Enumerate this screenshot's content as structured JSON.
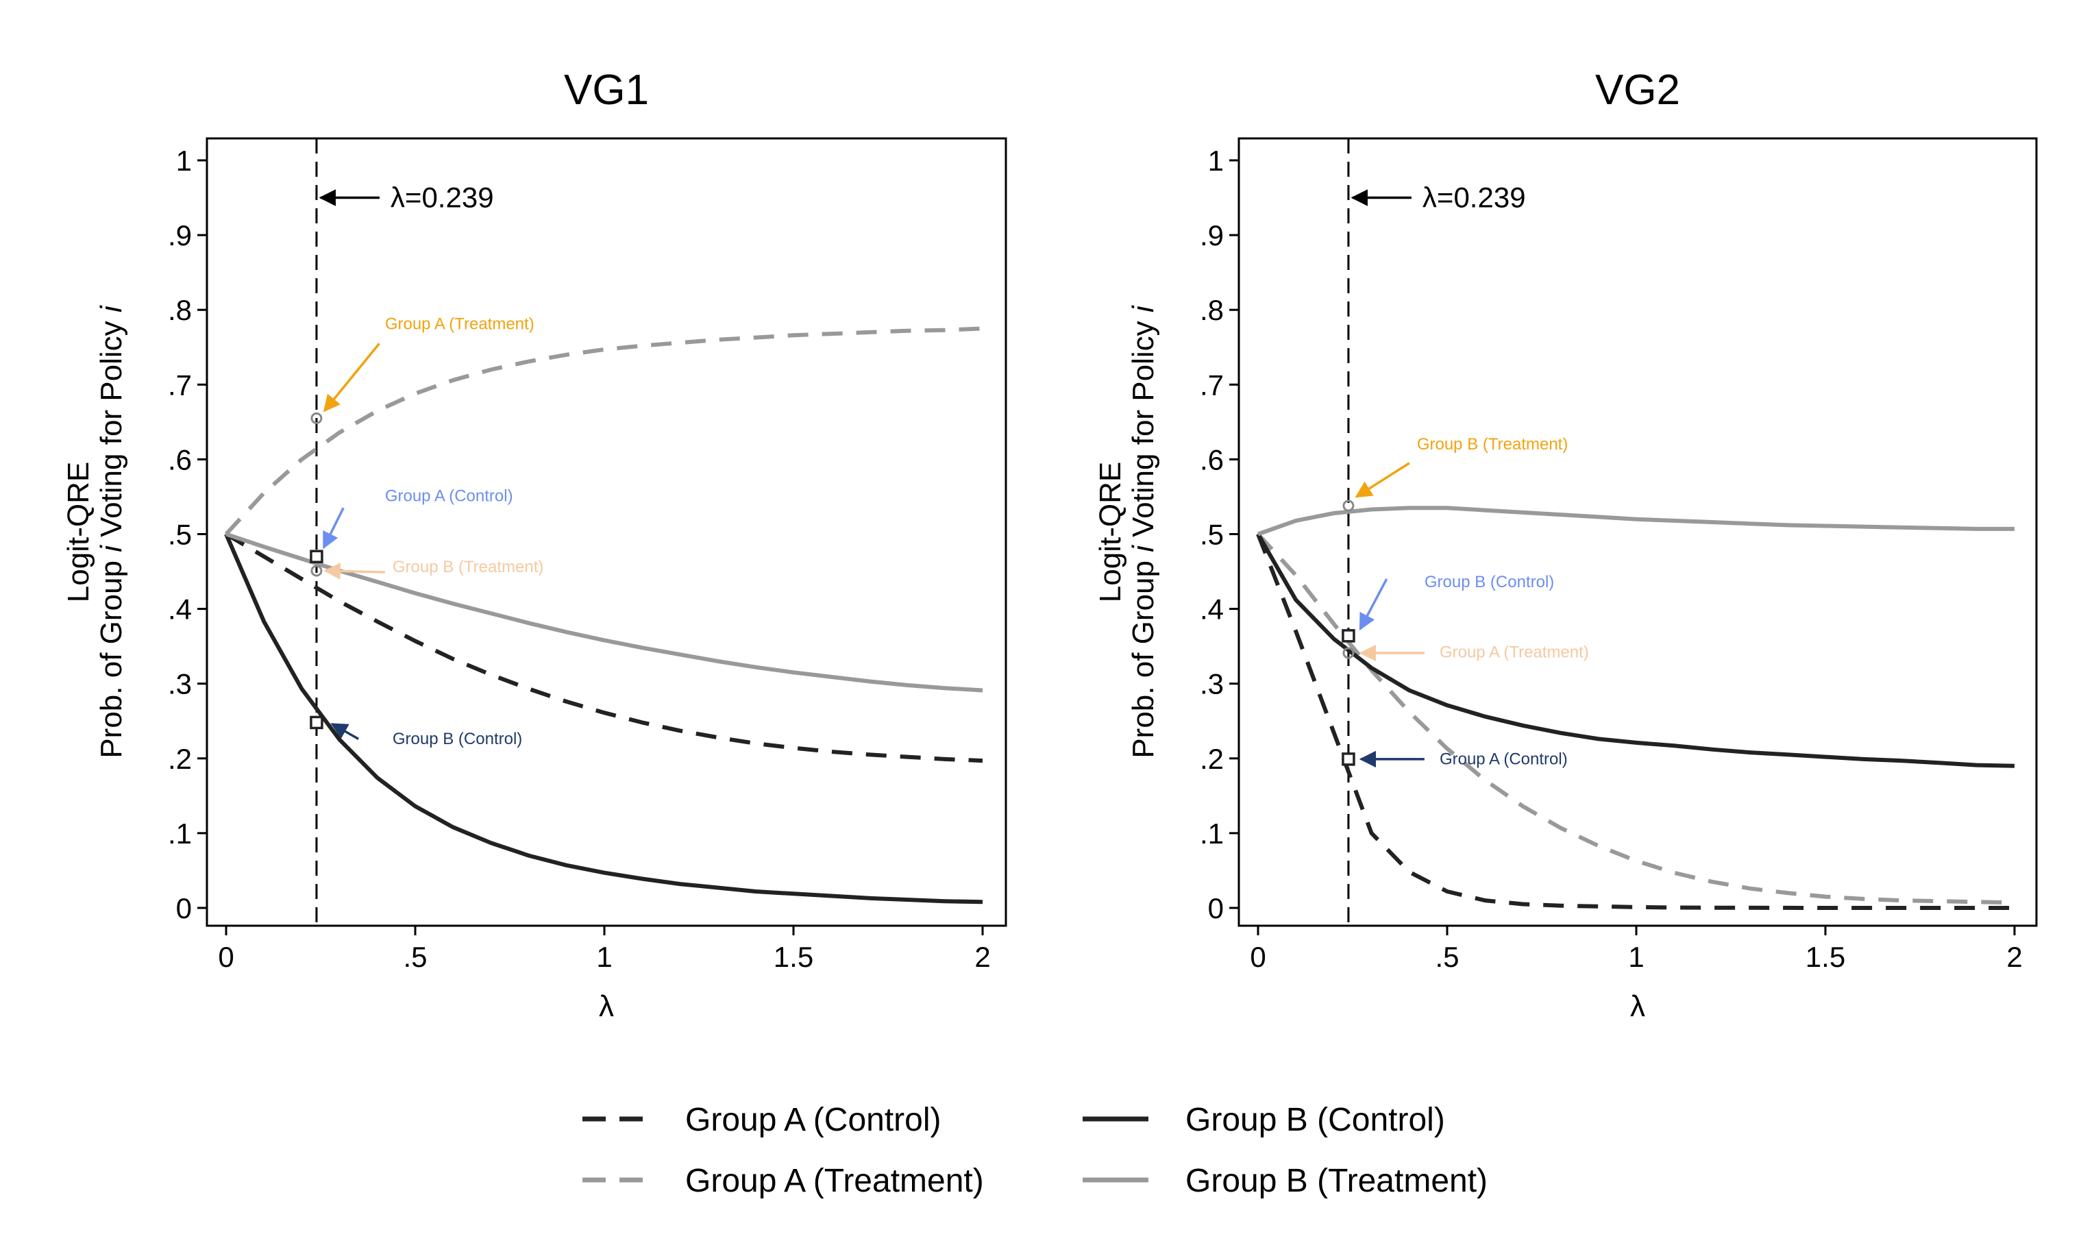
{
  "chart_data": [
    {
      "type": "line",
      "title": "VG1",
      "xlabel": "λ",
      "ylabel": [
        "Logit-QRE",
        "Prob. of Group ",
        "i",
        " Voting for Policy ",
        "i"
      ],
      "xlim": [
        0,
        2
      ],
      "ylim": [
        0,
        1
      ],
      "xticks": [
        {
          "v": 0,
          "label": "0"
        },
        {
          "v": 0.5,
          "label": ".5"
        },
        {
          "v": 1,
          "label": "1"
        },
        {
          "v": 1.5,
          "label": "1.5"
        },
        {
          "v": 2,
          "label": "2"
        }
      ],
      "yticks": [
        {
          "v": 0,
          "label": "0"
        },
        {
          "v": 0.1,
          "label": ".1"
        },
        {
          "v": 0.2,
          "label": ".2"
        },
        {
          "v": 0.3,
          "label": ".3"
        },
        {
          "v": 0.4,
          "label": ".4"
        },
        {
          "v": 0.5,
          "label": ".5"
        },
        {
          "v": 0.6,
          "label": ".6"
        },
        {
          "v": 0.7,
          "label": ".7"
        },
        {
          "v": 0.8,
          "label": ".8"
        },
        {
          "v": 0.9,
          "label": ".9"
        },
        {
          "v": 1,
          "label": "1"
        }
      ],
      "grid": false,
      "vline": {
        "x": 0.239,
        "label": "λ=0.239",
        "y": 0.95
      },
      "x": [
        0,
        0.1,
        0.2,
        0.3,
        0.4,
        0.5,
        0.6,
        0.7,
        0.8,
        0.9,
        1.0,
        1.1,
        1.2,
        1.3,
        1.4,
        1.5,
        1.6,
        1.7,
        1.8,
        1.9,
        2.0
      ],
      "series": [
        {
          "name": "Group A (Control)",
          "style": "dashed",
          "color": "#222222",
          "values": [
            0.5,
            0.47,
            0.44,
            0.41,
            0.383,
            0.357,
            0.333,
            0.312,
            0.293,
            0.276,
            0.261,
            0.248,
            0.237,
            0.228,
            0.22,
            0.214,
            0.209,
            0.205,
            0.202,
            0.199,
            0.197
          ]
        },
        {
          "name": "Group A (Treatment)",
          "style": "dashed",
          "color": "#999999",
          "values": [
            0.5,
            0.555,
            0.6,
            0.636,
            0.665,
            0.688,
            0.706,
            0.72,
            0.731,
            0.74,
            0.747,
            0.752,
            0.756,
            0.76,
            0.763,
            0.766,
            0.768,
            0.77,
            0.772,
            0.773,
            0.775
          ]
        },
        {
          "name": "Group B (Control)",
          "style": "solid",
          "color": "#222222",
          "values": [
            0.5,
            0.383,
            0.293,
            0.225,
            0.174,
            0.136,
            0.108,
            0.087,
            0.07,
            0.057,
            0.047,
            0.039,
            0.032,
            0.027,
            0.022,
            0.019,
            0.016,
            0.013,
            0.011,
            0.009,
            0.008
          ]
        },
        {
          "name": "Group B (Treatment)",
          "style": "solid",
          "color": "#999999",
          "values": [
            0.5,
            0.483,
            0.467,
            0.451,
            0.436,
            0.421,
            0.407,
            0.394,
            0.381,
            0.369,
            0.358,
            0.348,
            0.339,
            0.33,
            0.322,
            0.315,
            0.309,
            0.303,
            0.298,
            0.294,
            0.291
          ]
        }
      ],
      "markers": [
        {
          "series": "Group A (Treatment)",
          "shape": "circle",
          "x": 0.239,
          "y": 0.655
        },
        {
          "series": "Group A (Control)",
          "shape": "square",
          "x": 0.239,
          "y": 0.47
        },
        {
          "series": "Group B (Treatment)",
          "shape": "circle",
          "x": 0.239,
          "y": 0.451
        },
        {
          "series": "Group B (Control)",
          "shape": "square",
          "x": 0.239,
          "y": 0.248
        }
      ],
      "annotations": [
        {
          "text": "Group A (Treatment)",
          "color": "#F2A30F",
          "tx": 0.42,
          "ty": 0.774,
          "ax0": 0.405,
          "ay0": 0.755,
          "ax1": 0.26,
          "ay1": 0.665
        },
        {
          "text": "Group A (Control)",
          "color": "#6C8EF0",
          "tx": 0.42,
          "ty": 0.544,
          "ax0": 0.31,
          "ay0": 0.535,
          "ax1": 0.258,
          "ay1": 0.482
        },
        {
          "text": "Group B (Treatment)",
          "color": "#F5C9A0",
          "tx": 0.44,
          "ty": 0.449,
          "ax0": 0.42,
          "ay0": 0.449,
          "ax1": 0.262,
          "ay1": 0.451
        },
        {
          "text": "Group B (Control)",
          "color": "#1F3A6B",
          "tx": 0.44,
          "ty": 0.219,
          "ax0": 0.35,
          "ay0": 0.226,
          "ax1": 0.28,
          "ay1": 0.246
        }
      ]
    },
    {
      "type": "line",
      "title": "VG2",
      "xlabel": "λ",
      "ylabel": [
        "Logit-QRE",
        "Prob. of Group ",
        "i",
        " Voting for Policy ",
        "i"
      ],
      "xlim": [
        0,
        2
      ],
      "ylim": [
        0,
        1
      ],
      "xticks": [
        {
          "v": 0,
          "label": "0"
        },
        {
          "v": 0.5,
          "label": ".5"
        },
        {
          "v": 1,
          "label": "1"
        },
        {
          "v": 1.5,
          "label": "1.5"
        },
        {
          "v": 2,
          "label": "2"
        }
      ],
      "yticks": [
        {
          "v": 0,
          "label": "0"
        },
        {
          "v": 0.1,
          "label": ".1"
        },
        {
          "v": 0.2,
          "label": ".2"
        },
        {
          "v": 0.3,
          "label": ".3"
        },
        {
          "v": 0.4,
          "label": ".4"
        },
        {
          "v": 0.5,
          "label": ".5"
        },
        {
          "v": 0.6,
          "label": ".6"
        },
        {
          "v": 0.7,
          "label": ".7"
        },
        {
          "v": 0.8,
          "label": ".8"
        },
        {
          "v": 0.9,
          "label": ".9"
        },
        {
          "v": 1,
          "label": "1"
        }
      ],
      "grid": false,
      "vline": {
        "x": 0.239,
        "label": "λ=0.239",
        "y": 0.95
      },
      "x": [
        0,
        0.1,
        0.2,
        0.3,
        0.4,
        0.5,
        0.6,
        0.7,
        0.8,
        0.9,
        1.0,
        1.1,
        1.2,
        1.3,
        1.4,
        1.5,
        1.6,
        1.7,
        1.8,
        1.9,
        2.0
      ],
      "series": [
        {
          "name": "Group A (Control)",
          "style": "dashed",
          "color": "#222222",
          "values": [
            0.5,
            0.37,
            0.235,
            0.1,
            0.048,
            0.022,
            0.01,
            0.005,
            0.003,
            0.002,
            0.001,
            0.0005,
            0.0003,
            0.0002,
            0.0001,
            0,
            0,
            0,
            0,
            0,
            0
          ]
        },
        {
          "name": "Group A (Treatment)",
          "style": "dashed",
          "color": "#999999",
          "values": [
            0.5,
            0.445,
            0.38,
            0.318,
            0.262,
            0.213,
            0.171,
            0.136,
            0.107,
            0.083,
            0.063,
            0.047,
            0.035,
            0.026,
            0.02,
            0.015,
            0.012,
            0.01,
            0.009,
            0.008,
            0.007
          ]
        },
        {
          "name": "Group B (Control)",
          "style": "solid",
          "color": "#222222",
          "values": [
            0.5,
            0.412,
            0.36,
            0.321,
            0.291,
            0.271,
            0.256,
            0.244,
            0.234,
            0.226,
            0.221,
            0.217,
            0.212,
            0.208,
            0.205,
            0.202,
            0.199,
            0.197,
            0.194,
            0.191,
            0.19
          ]
        },
        {
          "name": "Group B (Treatment)",
          "style": "solid",
          "color": "#999999",
          "values": [
            0.5,
            0.518,
            0.528,
            0.533,
            0.535,
            0.535,
            0.532,
            0.529,
            0.526,
            0.523,
            0.52,
            0.518,
            0.516,
            0.514,
            0.512,
            0.511,
            0.51,
            0.509,
            0.508,
            0.507,
            0.507
          ]
        }
      ],
      "markers": [
        {
          "series": "Group B (Treatment)",
          "shape": "circle",
          "x": 0.239,
          "y": 0.538
        },
        {
          "series": "Group B (Control)",
          "shape": "square",
          "x": 0.239,
          "y": 0.364
        },
        {
          "series": "Group A (Treatment)",
          "shape": "circle",
          "x": 0.239,
          "y": 0.341
        },
        {
          "series": "Group A (Control)",
          "shape": "square",
          "x": 0.239,
          "y": 0.199
        }
      ],
      "annotations": [
        {
          "text": "Group B (Treatment)",
          "color": "#F2A30F",
          "tx": 0.42,
          "ty": 0.613,
          "ax0": 0.4,
          "ay0": 0.595,
          "ax1": 0.26,
          "ay1": 0.55
        },
        {
          "text": "Group B (Control)",
          "color": "#6C8EF0",
          "tx": 0.44,
          "ty": 0.429,
          "ax0": 0.34,
          "ay0": 0.44,
          "ax1": 0.27,
          "ay1": 0.373
        },
        {
          "text": "Group A (Treatment)",
          "color": "#F5C9A0",
          "tx": 0.48,
          "ty": 0.335,
          "ax0": 0.44,
          "ay0": 0.341,
          "ax1": 0.272,
          "ay1": 0.341
        },
        {
          "text": "Group A (Control)",
          "color": "#1F3A6B",
          "tx": 0.48,
          "ty": 0.192,
          "ax0": 0.44,
          "ay0": 0.199,
          "ax1": 0.272,
          "ay1": 0.199
        }
      ]
    }
  ],
  "legend": {
    "placement": "bottom",
    "items": [
      {
        "label": "Group A (Control)",
        "style": "dashed",
        "color": "#222222"
      },
      {
        "label": "Group B (Control)",
        "style": "solid",
        "color": "#222222"
      },
      {
        "label": "Group A (Treatment)",
        "style": "dashed",
        "color": "#999999"
      },
      {
        "label": "Group B (Treatment)",
        "style": "solid",
        "color": "#999999"
      }
    ]
  }
}
